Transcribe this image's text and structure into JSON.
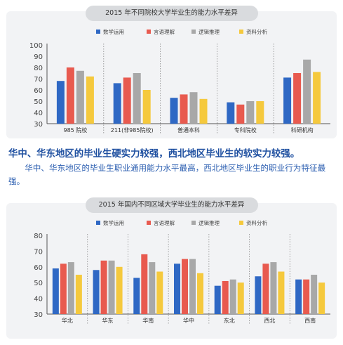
{
  "colors": {
    "series": [
      "#2f68c4",
      "#e85a4f",
      "#a8a8a8",
      "#f5c93d"
    ]
  },
  "chart_data": [
    {
      "type": "bar",
      "title": "2015 年不同院校大学毕业生的能力水平差异",
      "categories": [
        "985 院校",
        "211(非985院校)",
        "普通本科",
        "专科院校",
        "科研机构"
      ],
      "series": [
        {
          "name": "数学运用",
          "values": [
            68,
            66,
            53,
            49,
            71
          ]
        },
        {
          "name": "言语理解",
          "values": [
            80,
            71,
            56,
            47,
            75
          ]
        },
        {
          "name": "逻辑推理",
          "values": [
            77,
            75,
            58,
            50,
            87
          ]
        },
        {
          "name": "资料分析",
          "values": [
            72,
            60,
            52,
            50,
            76
          ]
        }
      ],
      "yticks": [
        "100",
        "90",
        "80",
        "70",
        "60",
        "50",
        "40",
        "30"
      ],
      "ylim": [
        30,
        100
      ],
      "legend": "top",
      "grid": false
    },
    {
      "type": "bar",
      "title": "2015 年国内不同区域大学毕业生的能力水平差异",
      "categories": [
        "华北",
        "华东",
        "华南",
        "华中",
        "东北",
        "西北",
        "西南"
      ],
      "series": [
        {
          "name": "数学运用",
          "values": [
            59,
            58,
            53,
            62,
            48,
            54,
            52
          ]
        },
        {
          "name": "言语理解",
          "values": [
            62,
            64,
            68,
            65,
            51,
            62,
            52
          ]
        },
        {
          "name": "逻辑推理",
          "values": [
            63,
            64,
            63,
            65,
            52,
            63,
            55
          ]
        },
        {
          "name": "资料分析",
          "values": [
            55,
            60,
            57,
            56,
            50,
            57,
            50
          ]
        }
      ],
      "yticks": [
        "80",
        "70",
        "60",
        "50",
        "40",
        "30"
      ],
      "ylim": [
        30,
        80
      ],
      "legend": "top",
      "grid": false
    }
  ],
  "text": {
    "headline": "华中、华东地区的毕业生硬实力较强，西北地区毕业生的软实力较强。",
    "body": "华中、华东地区的毕业生职业通用能力水平最高，西北地区毕业生的职业行为特征最强。"
  }
}
